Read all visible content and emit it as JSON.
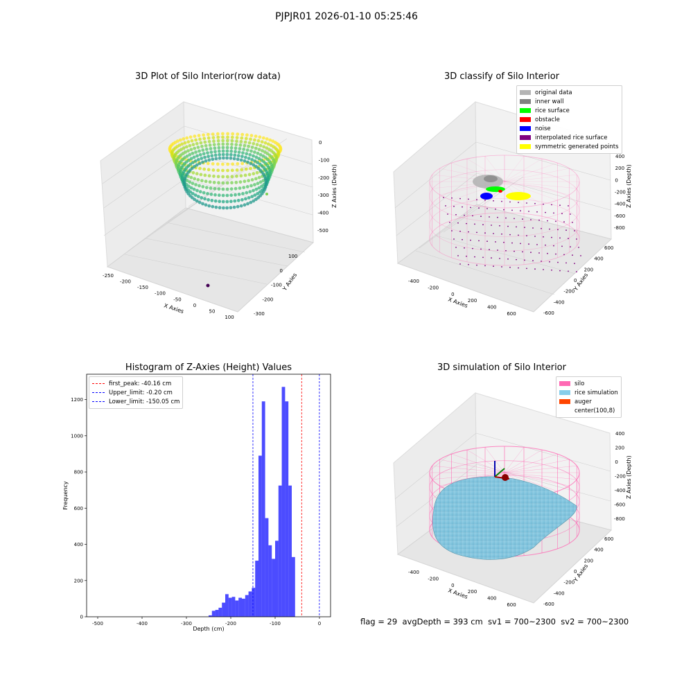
{
  "figure": {
    "title": "PJPJR01 2026-01-10 05:25:46",
    "status": {
      "flag": "flag = 29",
      "avg_depth": "avgDepth = 393 cm",
      "sv1": "sv1 = 700~2300",
      "sv2": "sv2 = 700~2300"
    }
  },
  "panels": {
    "raw": {
      "title": "3D Plot of Silo Interior(row data)",
      "xlabel": "X Axies",
      "ylabel": "Y Axies",
      "zlabel": "Z Axies (Depth)",
      "xticks": [
        "-250",
        "-200",
        "-150",
        "-100",
        "-50",
        "0",
        "50",
        "100"
      ],
      "yticks": [
        "100",
        "0",
        "-100",
        "-200",
        "-300"
      ],
      "zticks": [
        "0",
        "-100",
        "-200",
        "-300",
        "-400",
        "-500"
      ]
    },
    "classify": {
      "title": "3D classify of Silo Interior",
      "xlabel": "X Axies",
      "ylabel": "Y Axies",
      "zlabel": "Z Axies (Depth)",
      "xticks": [
        "-400",
        "-200",
        "0",
        "200",
        "400",
        "600"
      ],
      "yticks": [
        "600",
        "400",
        "200",
        "0",
        "-200",
        "-400",
        "-600"
      ],
      "zticks": [
        "400",
        "200",
        "0",
        "-200",
        "-400",
        "-600",
        "-800"
      ],
      "legend": [
        {
          "label": "original data",
          "color": "#b4b4b4"
        },
        {
          "label": "inner wall",
          "color": "#808080"
        },
        {
          "label": "rice surface",
          "color": "#00ff00"
        },
        {
          "label": "obstacle",
          "color": "#ff0000"
        },
        {
          "label": "noise",
          "color": "#0000ff"
        },
        {
          "label": "interpolated rice surface",
          "color": "#800080"
        },
        {
          "label": "symmetric generated points",
          "color": "#ffff00"
        }
      ]
    },
    "simulation": {
      "title": "3D simulation of Silo Interior",
      "xlabel": "X Axies",
      "ylabel": "Y Axies",
      "zlabel": "Z Axies (Depth)",
      "xticks": [
        "-400",
        "-200",
        "0",
        "200",
        "400",
        "600"
      ],
      "yticks": [
        "600",
        "400",
        "200",
        "0",
        "-200",
        "-400",
        "-600"
      ],
      "zticks": [
        "400",
        "200",
        "0",
        "-200",
        "-400",
        "-600",
        "-800"
      ],
      "legend": [
        {
          "label": "silo",
          "color": "#ff69b4"
        },
        {
          "label": "rice simulation",
          "color": "#87ceeb"
        },
        {
          "label": "auger",
          "color": "#ff4500"
        },
        {
          "label": "center(100,8)",
          "color": ""
        }
      ]
    }
  },
  "chart_data": {
    "type": "bar",
    "title": "Histogram of Z-Axies (Height) Values",
    "xlabel": "Depth (cm)",
    "ylabel": "Frequency",
    "xlim": [
      -525,
      25
    ],
    "ylim": [
      0,
      1340
    ],
    "xticks": [
      -500,
      -400,
      -300,
      -200,
      -100,
      0
    ],
    "yticks": [
      0,
      200,
      400,
      600,
      800,
      1000,
      1200
    ],
    "bar_color": "#0000ff",
    "bins": {
      "start": -250,
      "width": 7.5,
      "counts": [
        8,
        33,
        38,
        50,
        78,
        125,
        105,
        110,
        90,
        105,
        100,
        120,
        140,
        160,
        310,
        890,
        1190,
        545,
        395,
        320,
        420,
        725,
        1270,
        1190,
        725,
        330
      ]
    },
    "lines": [
      {
        "label": "first_peak: -40.16 cm",
        "value": -40.16,
        "color": "#ff0000"
      },
      {
        "label": "Upper_limit: -0.20 cm",
        "value": -0.2,
        "color": "#0000ff"
      },
      {
        "label": "Lower_limit: -150.05 cm",
        "value": -150.05,
        "color": "#0000ff"
      }
    ]
  }
}
